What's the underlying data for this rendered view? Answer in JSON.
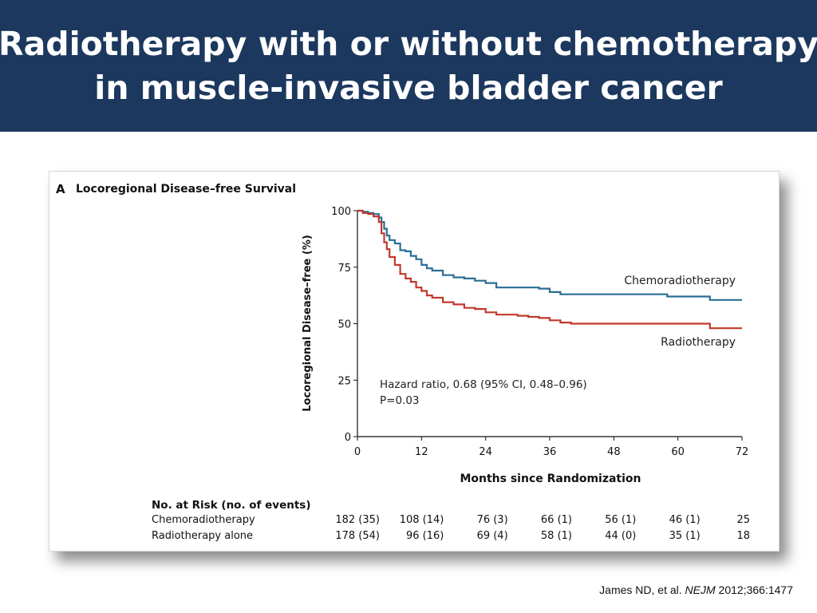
{
  "slide": {
    "title_line1": "Radiotherapy with or without chemotherapy",
    "title_line2": "in muscle-invasive bladder cancer",
    "citation_prefix": "James ND, et al. ",
    "citation_journal": "NEJM",
    "citation_suffix": " 2012;366:1477",
    "colors": {
      "title_bar": "#1c385e"
    }
  },
  "chart_data": {
    "type": "line",
    "panel_letter": "A",
    "title": "Locoregional Disease–free Survival",
    "xlabel": "Months since Randomization",
    "ylabel": "Locoregional Disease–free (%)",
    "xlim": [
      0,
      72
    ],
    "ylim": [
      0,
      100
    ],
    "xticks": [
      0,
      12,
      24,
      36,
      48,
      60,
      72
    ],
    "yticks": [
      0,
      25,
      50,
      75,
      100
    ],
    "grid": false,
    "annotation_line1": "Hazard ratio, 0.68 (95% CI, 0.48–0.96)",
    "annotation_line2": "P=0.03",
    "series": [
      {
        "name": "Chemoradiotherapy",
        "color": "#2a6e96",
        "style": "step",
        "x": [
          0,
          1,
          2,
          3,
          4,
          4.5,
          5,
          5.5,
          6,
          7,
          8,
          9,
          10,
          11,
          12,
          13,
          14,
          16,
          18,
          20,
          22,
          24,
          26,
          28,
          30,
          32,
          34,
          36,
          38,
          40,
          42,
          44,
          46,
          48,
          50,
          54,
          58,
          62,
          66,
          70,
          72
        ],
        "y": [
          100,
          99.5,
          99,
          98.5,
          97,
          95,
          92,
          89,
          87,
          85.5,
          82.5,
          82,
          80,
          78.5,
          76,
          74.5,
          73.5,
          71.5,
          70.5,
          70,
          69,
          68,
          66,
          66,
          66,
          66,
          65.5,
          64,
          63,
          63,
          63,
          63,
          63,
          63,
          63,
          63,
          62,
          62,
          60.5,
          60.5,
          60.5
        ]
      },
      {
        "name": "Radiotherapy",
        "color": "#c0392b",
        "style": "step",
        "x": [
          0,
          1,
          2,
          3,
          4,
          4.5,
          5,
          5.5,
          6,
          7,
          8,
          9,
          10,
          11,
          12,
          13,
          14,
          16,
          18,
          20,
          22,
          24,
          26,
          28,
          30,
          32,
          34,
          36,
          38,
          40,
          42,
          44,
          46,
          48,
          50,
          54,
          58,
          62,
          66,
          70,
          72
        ],
        "y": [
          100,
          99,
          98.5,
          97.5,
          95,
          90,
          86,
          83,
          79.5,
          76,
          72,
          70,
          68.5,
          66,
          64.5,
          62.5,
          61.5,
          59.5,
          58.5,
          57,
          56.5,
          55,
          54,
          54,
          53.5,
          53,
          52.5,
          51.5,
          50.5,
          50,
          50,
          50,
          50,
          50,
          50,
          50,
          50,
          50,
          48,
          48,
          48
        ]
      }
    ],
    "risk_table": {
      "header": "No. at Risk (no. of events)",
      "rows": [
        {
          "label": "Chemoradiotherapy",
          "values": [
            "182 (35)",
            "108 (14)",
            "76 (3)",
            "66 (1)",
            "56 (1)",
            "46 (1)",
            "25"
          ]
        },
        {
          "label": "Radiotherapy alone",
          "values": [
            "178 (54)",
            "96 (16)",
            "69 (4)",
            "58 (1)",
            "44 (0)",
            "35 (1)",
            "18"
          ]
        }
      ]
    }
  }
}
